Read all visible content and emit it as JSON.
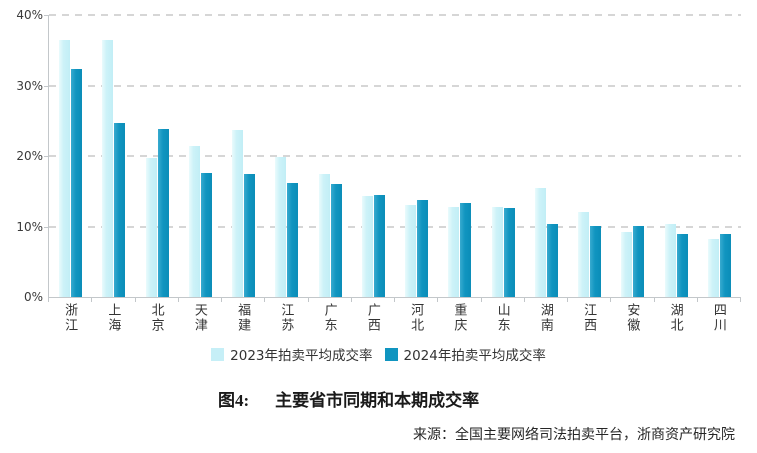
{
  "figure": {
    "caption_prefix": "图4:",
    "caption_title": "主要省市同期和本期成交率",
    "source": "来源：全国主要网络司法拍卖平台，浙商资产研究院"
  },
  "chart_data": {
    "type": "bar",
    "title": "主要省市同期和本期成交率",
    "categories": [
      "浙江",
      "上海",
      "北京",
      "天津",
      "福建",
      "江苏",
      "广东",
      "广西",
      "河北",
      "重庆",
      "山东",
      "湖南",
      "江西",
      "安徽",
      "湖北",
      "四川"
    ],
    "series": [
      {
        "name": "2023年拍卖平均成交率",
        "color": "#c6eff7",
        "values": [
          36.5,
          36.5,
          19.7,
          21.4,
          23.7,
          19.8,
          17.5,
          14.3,
          13.1,
          12.7,
          12.7,
          15.4,
          12.0,
          9.2,
          10.3,
          8.2
        ]
      },
      {
        "name": "2024年拍卖平均成交率",
        "color": "#1095c0",
        "values": [
          32.3,
          24.7,
          23.8,
          17.6,
          17.4,
          16.2,
          16.1,
          14.5,
          13.7,
          13.3,
          12.6,
          10.4,
          10.1,
          10.1,
          9.0,
          9.0
        ]
      }
    ],
    "xlabel": "",
    "ylabel": "",
    "ylim": [
      0,
      40
    ],
    "yticks": [
      0,
      10,
      20,
      30,
      40
    ],
    "ytick_labels": [
      "0%",
      "10%",
      "20%",
      "30%",
      "40%"
    ],
    "grid": "horizontal-dashed",
    "legend_position": "bottom"
  }
}
